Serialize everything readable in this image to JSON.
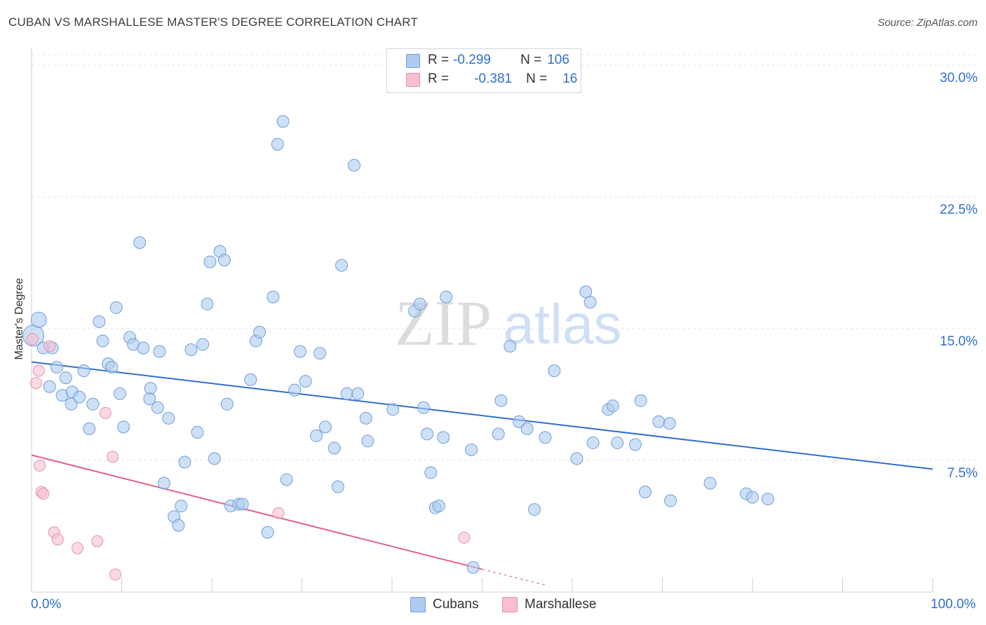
{
  "title": "CUBAN VS MARSHALLESE MASTER'S DEGREE CORRELATION CHART",
  "source": "Source: ZipAtlas.com",
  "watermark": {
    "zip": "ZIP",
    "atlas": "atlas"
  },
  "legend": {
    "rows": [
      {
        "r_label": "R =",
        "r_value": "-0.299",
        "n_label": "N =",
        "n_value": "106"
      },
      {
        "r_label": "R =",
        "r_value": "-0.381",
        "n_label": "N =",
        "n_value": "16"
      }
    ]
  },
  "colors": {
    "cubans_fill": "#aecbf0",
    "cubans_stroke": "#6f9fd8",
    "cubans_line": "#2f6fcf",
    "marsh_fill": "#f7bfcf",
    "marsh_stroke": "#e592ac",
    "marsh_line": "#e0608c",
    "axis_text": "#2f6fcf",
    "grid": "#e3e3e3"
  },
  "chart_data": {
    "type": "scatter",
    "title": "CUBAN VS MARSHALLESE MASTER'S DEGREE CORRELATION CHART",
    "xlabel": "",
    "ylabel": "Master's Degree",
    "xlim": [
      0,
      100
    ],
    "ylim": [
      0,
      30.6
    ],
    "x_tick_labels": [
      "0.0%",
      "100.0%"
    ],
    "y_ticks": [
      7.5,
      15.0,
      22.5,
      30.0
    ],
    "y_tick_labels": [
      "7.5%",
      "15.0%",
      "22.5%",
      "30.0%"
    ],
    "series": [
      {
        "name": "Cubans",
        "r": -0.299,
        "n": 106,
        "trend": {
          "x": [
            0,
            100
          ],
          "y": [
            13.1,
            7.0
          ]
        },
        "points": [
          [
            0.2,
            14.6
          ],
          [
            0.8,
            15.5
          ],
          [
            1.3,
            13.9
          ],
          [
            2.3,
            13.9
          ],
          [
            2.0,
            11.7
          ],
          [
            2.8,
            12.8
          ],
          [
            3.4,
            11.2
          ],
          [
            3.8,
            12.2
          ],
          [
            4.4,
            10.7
          ],
          [
            4.5,
            11.4
          ],
          [
            5.3,
            11.1
          ],
          [
            5.8,
            12.6
          ],
          [
            6.4,
            9.3
          ],
          [
            6.8,
            10.7
          ],
          [
            7.5,
            15.4
          ],
          [
            7.9,
            14.3
          ],
          [
            8.5,
            13.0
          ],
          [
            8.9,
            12.8
          ],
          [
            9.4,
            16.2
          ],
          [
            9.8,
            11.3
          ],
          [
            10.2,
            9.4
          ],
          [
            10.9,
            14.5
          ],
          [
            11.3,
            14.1
          ],
          [
            12.0,
            19.9
          ],
          [
            12.4,
            13.9
          ],
          [
            13.2,
            11.6
          ],
          [
            13.1,
            11.0
          ],
          [
            14.0,
            10.5
          ],
          [
            14.2,
            13.7
          ],
          [
            14.7,
            6.2
          ],
          [
            15.2,
            9.9
          ],
          [
            15.8,
            4.3
          ],
          [
            16.3,
            3.8
          ],
          [
            16.6,
            4.9
          ],
          [
            17.0,
            7.4
          ],
          [
            17.7,
            13.8
          ],
          [
            18.4,
            9.1
          ],
          [
            19.0,
            14.1
          ],
          [
            19.5,
            16.4
          ],
          [
            19.8,
            18.8
          ],
          [
            20.3,
            7.6
          ],
          [
            20.9,
            19.4
          ],
          [
            21.4,
            18.9
          ],
          [
            21.7,
            10.7
          ],
          [
            22.1,
            4.9
          ],
          [
            23.0,
            5.0
          ],
          [
            23.4,
            5.0
          ],
          [
            24.3,
            12.1
          ],
          [
            24.9,
            14.3
          ],
          [
            25.3,
            14.8
          ],
          [
            26.2,
            3.4
          ],
          [
            26.8,
            16.8
          ],
          [
            27.3,
            25.5
          ],
          [
            27.9,
            26.8
          ],
          [
            28.3,
            6.4
          ],
          [
            29.2,
            11.5
          ],
          [
            29.8,
            13.7
          ],
          [
            30.4,
            12.0
          ],
          [
            31.6,
            8.9
          ],
          [
            32.0,
            13.6
          ],
          [
            32.6,
            9.4
          ],
          [
            33.6,
            8.2
          ],
          [
            34.0,
            6.0
          ],
          [
            34.4,
            18.6
          ],
          [
            35.0,
            11.3
          ],
          [
            35.8,
            24.3
          ],
          [
            36.2,
            11.3
          ],
          [
            37.1,
            9.9
          ],
          [
            37.3,
            8.6
          ],
          [
            40.1,
            10.4
          ],
          [
            42.5,
            16.0
          ],
          [
            43.1,
            16.4
          ],
          [
            43.5,
            10.5
          ],
          [
            43.9,
            9.0
          ],
          [
            44.3,
            6.8
          ],
          [
            44.8,
            4.8
          ],
          [
            45.2,
            4.9
          ],
          [
            45.7,
            8.8
          ],
          [
            46.0,
            16.8
          ],
          [
            48.8,
            8.1
          ],
          [
            51.8,
            9.0
          ],
          [
            52.1,
            10.9
          ],
          [
            53.1,
            14.0
          ],
          [
            54.1,
            9.7
          ],
          [
            55.0,
            9.3
          ],
          [
            55.8,
            4.7
          ],
          [
            57.0,
            8.8
          ],
          [
            58.0,
            12.6
          ],
          [
            60.5,
            7.6
          ],
          [
            61.5,
            17.1
          ],
          [
            62.0,
            16.5
          ],
          [
            62.3,
            8.5
          ],
          [
            64.0,
            10.4
          ],
          [
            64.5,
            10.6
          ],
          [
            65.0,
            8.5
          ],
          [
            67.0,
            8.4
          ],
          [
            67.6,
            10.9
          ],
          [
            68.1,
            5.7
          ],
          [
            69.6,
            9.7
          ],
          [
            70.8,
            9.6
          ],
          [
            70.9,
            5.2
          ],
          [
            75.3,
            6.2
          ],
          [
            79.3,
            5.6
          ],
          [
            80.0,
            5.4
          ],
          [
            81.7,
            5.3
          ],
          [
            49.0,
            1.4
          ]
        ]
      },
      {
        "name": "Marshallese",
        "r": -0.381,
        "n": 16,
        "trend": {
          "x": [
            0,
            50
          ],
          "y": [
            7.8,
            1.3
          ]
        },
        "trend_dashed": {
          "x": [
            50,
            57
          ],
          "y": [
            1.3,
            0.4
          ]
        },
        "points": [
          [
            0.1,
            14.4
          ],
          [
            0.5,
            11.9
          ],
          [
            0.8,
            12.6
          ],
          [
            0.9,
            7.2
          ],
          [
            1.1,
            5.7
          ],
          [
            1.3,
            5.6
          ],
          [
            2.0,
            14.0
          ],
          [
            2.5,
            3.4
          ],
          [
            2.9,
            3.0
          ],
          [
            5.1,
            2.5
          ],
          [
            7.3,
            2.9
          ],
          [
            8.2,
            10.2
          ],
          [
            9.0,
            7.7
          ],
          [
            9.3,
            1.0
          ],
          [
            27.4,
            4.5
          ],
          [
            48.0,
            3.1
          ]
        ]
      }
    ]
  }
}
